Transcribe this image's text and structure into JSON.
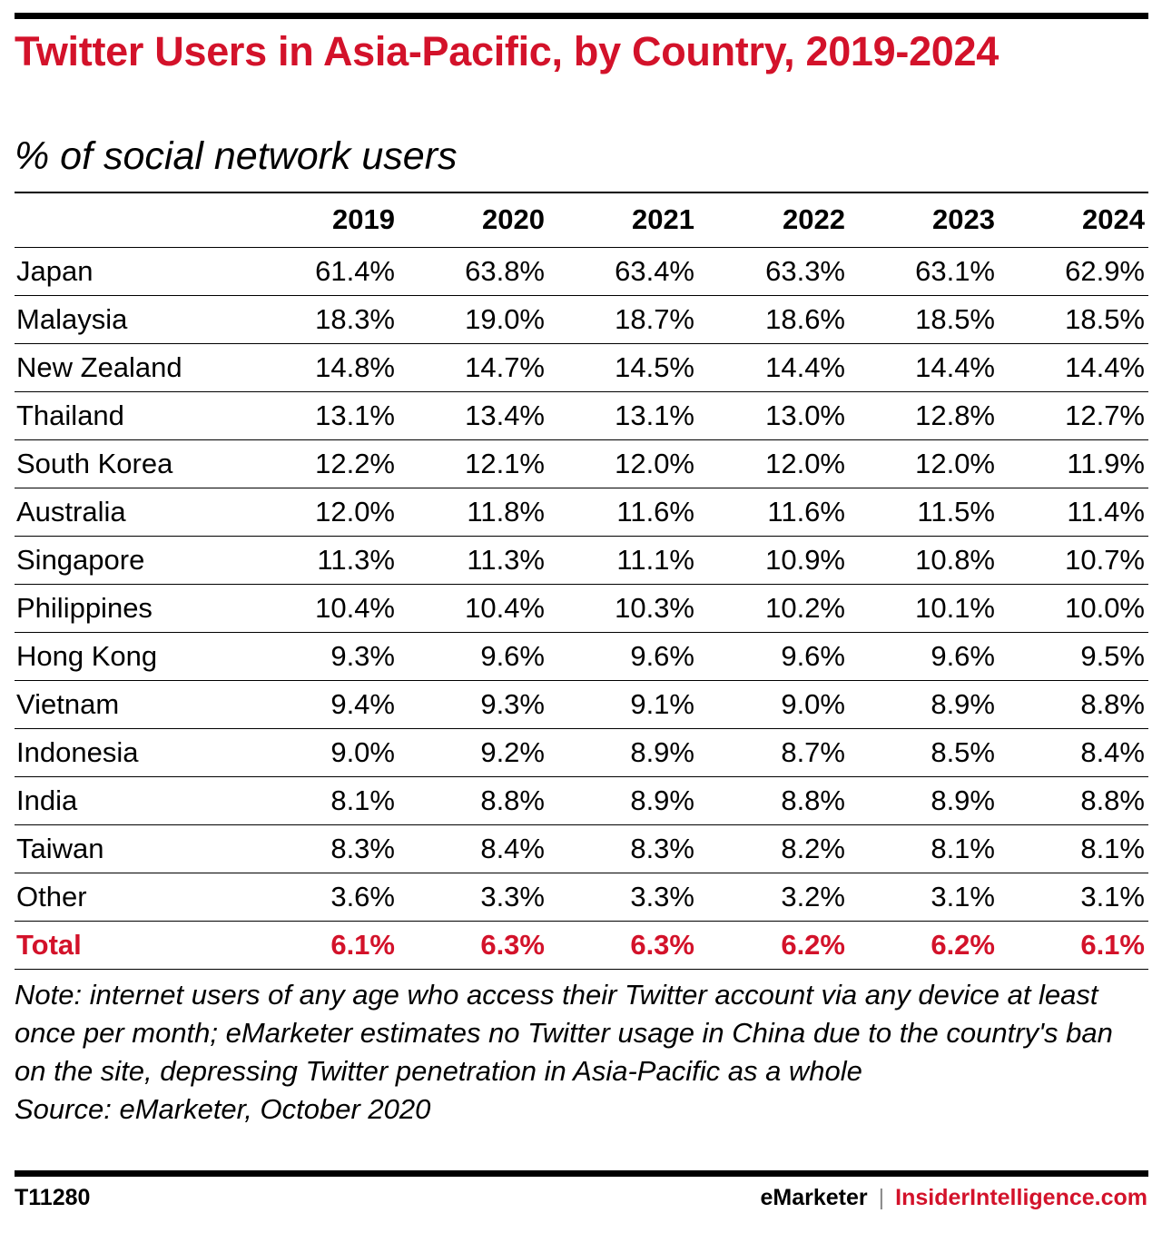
{
  "title": "Twitter Users in Asia-Pacific, by Country, 2019-2024",
  "subtitle": "% of social network users",
  "chart_data": {
    "type": "table",
    "title": "Twitter Users in Asia-Pacific, by Country, 2019-2024",
    "subtitle": "% of social network users",
    "columns": [
      "",
      "2019",
      "2020",
      "2021",
      "2022",
      "2023",
      "2024"
    ],
    "rows": [
      {
        "label": "Japan",
        "values": [
          "61.4%",
          "63.8%",
          "63.4%",
          "63.3%",
          "63.1%",
          "62.9%"
        ]
      },
      {
        "label": "Malaysia",
        "values": [
          "18.3%",
          "19.0%",
          "18.7%",
          "18.6%",
          "18.5%",
          "18.5%"
        ]
      },
      {
        "label": "New Zealand",
        "values": [
          "14.8%",
          "14.7%",
          "14.5%",
          "14.4%",
          "14.4%",
          "14.4%"
        ]
      },
      {
        "label": "Thailand",
        "values": [
          "13.1%",
          "13.4%",
          "13.1%",
          "13.0%",
          "12.8%",
          "12.7%"
        ]
      },
      {
        "label": "South Korea",
        "values": [
          "12.2%",
          "12.1%",
          "12.0%",
          "12.0%",
          "12.0%",
          "11.9%"
        ]
      },
      {
        "label": "Australia",
        "values": [
          "12.0%",
          "11.8%",
          "11.6%",
          "11.6%",
          "11.5%",
          "11.4%"
        ]
      },
      {
        "label": "Singapore",
        "values": [
          "11.3%",
          "11.3%",
          "11.1%",
          "10.9%",
          "10.8%",
          "10.7%"
        ]
      },
      {
        "label": "Philippines",
        "values": [
          "10.4%",
          "10.4%",
          "10.3%",
          "10.2%",
          "10.1%",
          "10.0%"
        ]
      },
      {
        "label": "Hong Kong",
        "values": [
          "9.3%",
          "9.6%",
          "9.6%",
          "9.6%",
          "9.6%",
          "9.5%"
        ]
      },
      {
        "label": "Vietnam",
        "values": [
          "9.4%",
          "9.3%",
          "9.1%",
          "9.0%",
          "8.9%",
          "8.8%"
        ]
      },
      {
        "label": "Indonesia",
        "values": [
          "9.0%",
          "9.2%",
          "8.9%",
          "8.7%",
          "8.5%",
          "8.4%"
        ]
      },
      {
        "label": "India",
        "values": [
          "8.1%",
          "8.8%",
          "8.9%",
          "8.8%",
          "8.9%",
          "8.8%"
        ]
      },
      {
        "label": "Taiwan",
        "values": [
          "8.3%",
          "8.4%",
          "8.3%",
          "8.2%",
          "8.1%",
          "8.1%"
        ]
      },
      {
        "label": "Other",
        "values": [
          "3.6%",
          "3.3%",
          "3.3%",
          "3.2%",
          "3.1%",
          "3.1%"
        ]
      }
    ],
    "total": {
      "label": "Total",
      "values": [
        "6.1%",
        "6.3%",
        "6.3%",
        "6.2%",
        "6.2%",
        "6.1%"
      ]
    }
  },
  "note": "Note: internet users of any age who access their Twitter account via any device at least once per month; eMarketer estimates no Twitter usage in China due to the country's ban on the site, depressing Twitter penetration in Asia-Pacific as a whole",
  "source": "Source: eMarketer, October 2020",
  "footer": {
    "chart_id": "T11280",
    "brand_left": "eMarketer",
    "separator": "|",
    "brand_right": "InsiderIntelligence.com"
  },
  "colors": {
    "accent": "#d3122a",
    "text": "#000000",
    "separator": "#888888"
  }
}
